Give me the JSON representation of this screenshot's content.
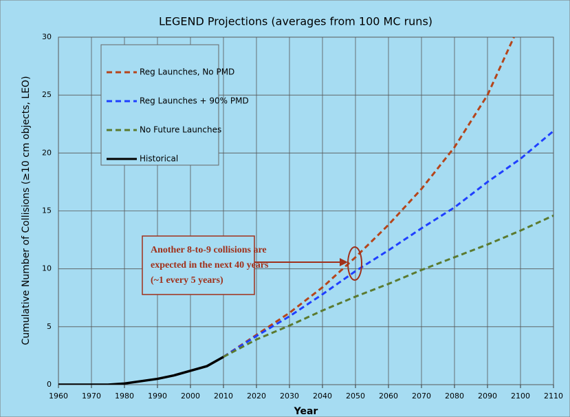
{
  "chart_data": {
    "type": "line",
    "title": "LEGEND Projections (averages from 100 MC runs)",
    "x_label": "Year",
    "y_label": "Cumulative Number of Collisions (≥10 cm objects, LEO)",
    "xlim": [
      1960,
      2110
    ],
    "xticks": [
      1960,
      1970,
      1980,
      1990,
      2000,
      2010,
      2020,
      2030,
      2040,
      2050,
      2060,
      2070,
      2080,
      2090,
      2100,
      2110
    ],
    "ylim": [
      0,
      30
    ],
    "yticks": [
      0,
      5,
      10,
      15,
      20,
      25,
      30
    ],
    "grid": true,
    "legend": "upper left",
    "series": [
      {
        "name": "Reg Launches, No PMD",
        "color": "#b5451b",
        "dashed": true,
        "x": [
          2010,
          2020,
          2030,
          2040,
          2050,
          2060,
          2070,
          2080,
          2090,
          2098
        ],
        "values": [
          2.4,
          4.3,
          6.2,
          8.4,
          11,
          13.8,
          16.9,
          20.5,
          25,
          30
        ]
      },
      {
        "name": "Reg Launches + 90% PMD",
        "color": "#1f3fff",
        "dashed": true,
        "x": [
          2010,
          2020,
          2030,
          2040,
          2050,
          2060,
          2070,
          2080,
          2090,
          2100,
          2110
        ],
        "values": [
          2.4,
          4.2,
          5.9,
          7.8,
          9.8,
          11.6,
          13.5,
          15.3,
          17.5,
          19.5,
          21.9
        ]
      },
      {
        "name": "No Future Launches",
        "color": "#5b7a2f",
        "dashed": true,
        "x": [
          2010,
          2020,
          2030,
          2040,
          2050,
          2060,
          2070,
          2080,
          2090,
          2100,
          2110
        ],
        "values": [
          2.4,
          3.9,
          5.1,
          6.4,
          7.6,
          8.7,
          9.9,
          11,
          12.1,
          13.3,
          14.6
        ]
      },
      {
        "name": "Historical",
        "color": "#000000",
        "dashed": false,
        "x": [
          1960,
          1965,
          1970,
          1975,
          1980,
          1985,
          1990,
          1995,
          2000,
          2005,
          2010
        ],
        "values": [
          0,
          0,
          0,
          0,
          0.1,
          0.3,
          0.5,
          0.8,
          1.2,
          1.6,
          2.4
        ]
      }
    ],
    "annotation": {
      "lines": [
        "Another 8-to-9 collisions are",
        "expected in the next 40 years",
        "(~1 every 5 years)"
      ],
      "color": "#a0301a"
    }
  }
}
